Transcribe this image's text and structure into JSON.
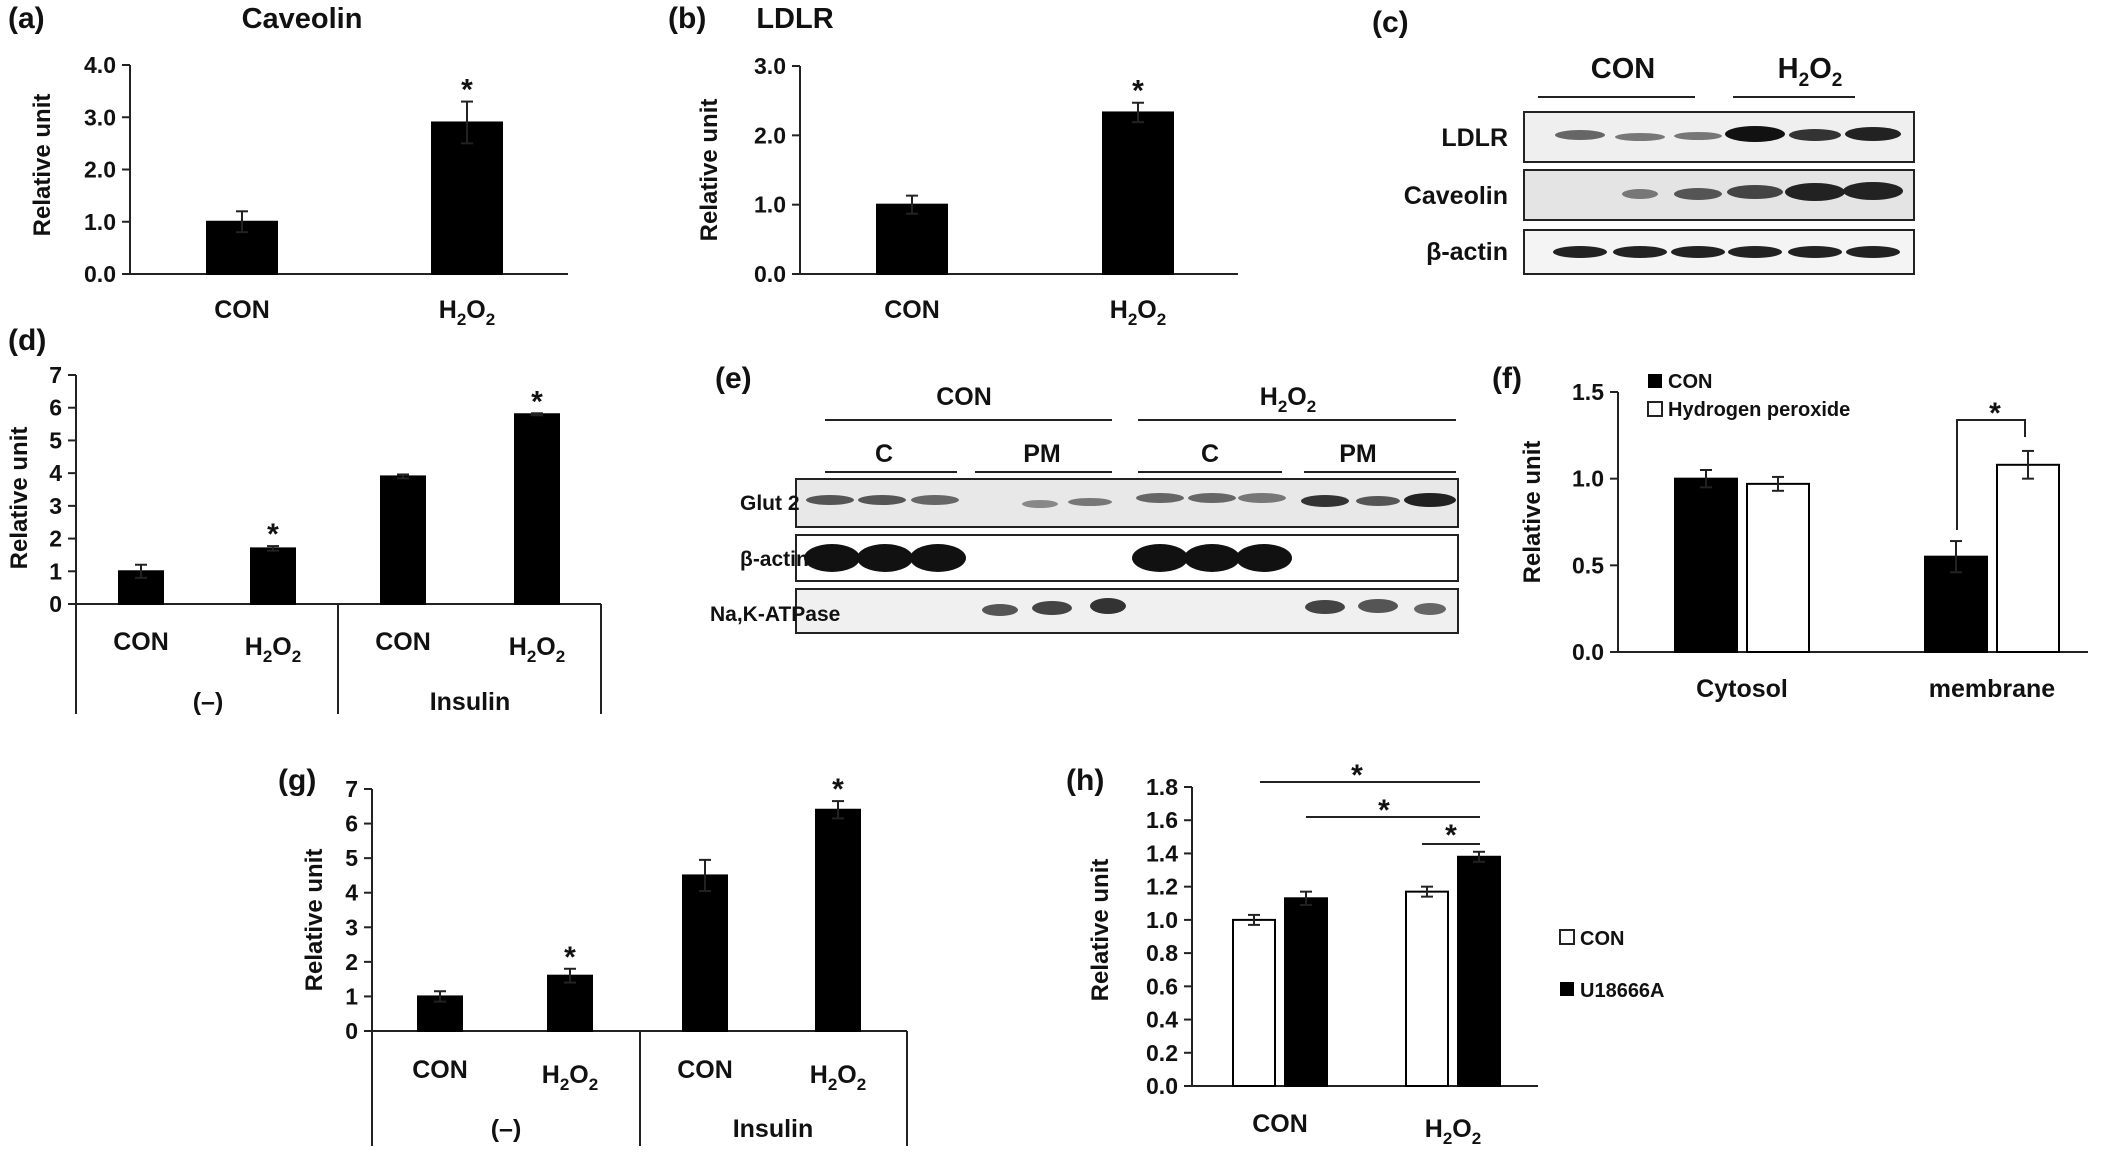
{
  "panels": {
    "a": {
      "label": "(a)",
      "title": "Caveolin",
      "ylabel": "Relative unit",
      "yticks": [
        "0.0",
        "1.0",
        "2.0",
        "3.0",
        "4.0"
      ],
      "categories": [
        "CON",
        "H2O2"
      ],
      "values": [
        1.0,
        2.9
      ],
      "errors": [
        0.2,
        0.4
      ],
      "stars": [
        "",
        "*"
      ],
      "ylim": [
        0,
        4
      ]
    },
    "b": {
      "label": "(b)",
      "title": "LDLR",
      "ylabel": "Relative unit",
      "yticks": [
        "0.0",
        "1.0",
        "2.0",
        "3.0"
      ],
      "categories": [
        "CON",
        "H2O2"
      ],
      "values": [
        1.0,
        2.33
      ],
      "errors": [
        0.13,
        0.14
      ],
      "stars": [
        "",
        "*"
      ],
      "ylim": [
        0,
        3
      ]
    },
    "c": {
      "label": "(c)",
      "groups": [
        "CON",
        "H2O2"
      ],
      "rows": [
        "LDLR",
        "Caveolin",
        "β-actin"
      ]
    },
    "d": {
      "label": "(d)",
      "ylabel": "Relative unit",
      "yticks": [
        "0",
        "1",
        "2",
        "3",
        "4",
        "5",
        "6",
        "7"
      ],
      "categories": [
        "CON",
        "H2O2",
        "CON",
        "H2O2"
      ],
      "values": [
        1.0,
        1.7,
        3.9,
        5.8
      ],
      "errors": [
        0.2,
        0.07,
        0.06,
        0.03
      ],
      "stars": [
        "",
        "*",
        "",
        "*"
      ],
      "groups": [
        "(–)",
        "Insulin"
      ],
      "ylim": [
        0,
        7
      ]
    },
    "e": {
      "label": "(e)",
      "groups": [
        "CON",
        "H2O2"
      ],
      "subgroups": [
        "C",
        "PM",
        "C",
        "PM"
      ],
      "rows": [
        "Glut 2",
        "β-actin",
        "Na,K-ATPase"
      ]
    },
    "f": {
      "label": "(f)",
      "ylabel": "Relative unit",
      "yticks": [
        "0.0",
        "0.5",
        "1.0",
        "1.5"
      ],
      "categories": [
        "Cytosol",
        "membrane"
      ],
      "series": [
        {
          "name": "CON",
          "values": [
            1.0,
            0.55
          ],
          "errors": [
            0.05,
            0.09
          ]
        },
        {
          "name": "Hydrogen peroxide",
          "values": [
            0.97,
            1.08
          ],
          "errors": [
            0.04,
            0.08
          ]
        }
      ],
      "star": "*",
      "ylim": [
        0,
        1.5
      ]
    },
    "g": {
      "label": "(g)",
      "ylabel": "Relative unit",
      "yticks": [
        "0",
        "1",
        "2",
        "3",
        "4",
        "5",
        "6",
        "7"
      ],
      "categories": [
        "CON",
        "H2O2",
        "CON",
        "H2O2"
      ],
      "values": [
        1.0,
        1.6,
        4.5,
        6.4
      ],
      "errors": [
        0.15,
        0.2,
        0.45,
        0.25
      ],
      "stars": [
        "",
        "*",
        "",
        "*"
      ],
      "groups": [
        "(–)",
        "Insulin"
      ],
      "ylim": [
        0,
        7
      ]
    },
    "h": {
      "label": "(h)",
      "ylabel": "Relative unit",
      "yticks": [
        "0.0",
        "0.2",
        "0.4",
        "0.6",
        "0.8",
        "1.0",
        "1.2",
        "1.4",
        "1.6",
        "1.8"
      ],
      "categories": [
        "CON",
        "H2O2"
      ],
      "series": [
        {
          "name": "CON",
          "values": [
            1.0,
            1.17
          ],
          "errors": [
            0.03,
            0.03
          ]
        },
        {
          "name": "U18666A",
          "values": [
            1.13,
            1.38
          ],
          "errors": [
            0.04,
            0.03
          ]
        }
      ],
      "stars": [
        "*",
        "*",
        "*"
      ],
      "ylim": [
        0,
        1.8
      ]
    }
  },
  "chart_data": [
    {
      "panel": "a",
      "type": "bar",
      "title": "Caveolin",
      "ylabel": "Relative unit",
      "categories": [
        "CON",
        "H2O2"
      ],
      "values": [
        1.0,
        2.9
      ],
      "ylim": [
        0,
        4
      ]
    },
    {
      "panel": "b",
      "type": "bar",
      "title": "LDLR",
      "ylabel": "Relative unit",
      "categories": [
        "CON",
        "H2O2"
      ],
      "values": [
        1.0,
        2.33
      ],
      "ylim": [
        0,
        3
      ]
    },
    {
      "panel": "d",
      "type": "bar",
      "ylabel": "Relative unit",
      "categories": [
        "CON",
        "H2O2",
        "CON",
        "H2O2"
      ],
      "groups": [
        "(–)",
        "Insulin"
      ],
      "values": [
        1.0,
        1.7,
        3.9,
        5.8
      ],
      "ylim": [
        0,
        7
      ]
    },
    {
      "panel": "f",
      "type": "bar",
      "ylabel": "Relative unit",
      "categories": [
        "Cytosol",
        "membrane"
      ],
      "series": [
        {
          "name": "CON",
          "values": [
            1.0,
            0.55
          ]
        },
        {
          "name": "Hydrogen peroxide",
          "values": [
            0.97,
            1.08
          ]
        }
      ],
      "ylim": [
        0,
        1.5
      ],
      "legend": "top-left"
    },
    {
      "panel": "g",
      "type": "bar",
      "ylabel": "Relative unit",
      "categories": [
        "CON",
        "H2O2",
        "CON",
        "H2O2"
      ],
      "groups": [
        "(–)",
        "Insulin"
      ],
      "values": [
        1.0,
        1.6,
        4.5,
        6.4
      ],
      "ylim": [
        0,
        7
      ]
    },
    {
      "panel": "h",
      "type": "bar",
      "ylabel": "Relative unit",
      "categories": [
        "CON",
        "H2O2"
      ],
      "series": [
        {
          "name": "CON",
          "values": [
            1.0,
            1.17
          ]
        },
        {
          "name": "U18666A",
          "values": [
            1.13,
            1.38
          ]
        }
      ],
      "ylim": [
        0,
        1.8
      ],
      "legend": "right"
    }
  ],
  "colors": {
    "bar_dark": "#000000",
    "bar_light": "#ffffff",
    "axis": "#222222",
    "blot_bg": "#efefef",
    "band": "#1a1a1a"
  }
}
